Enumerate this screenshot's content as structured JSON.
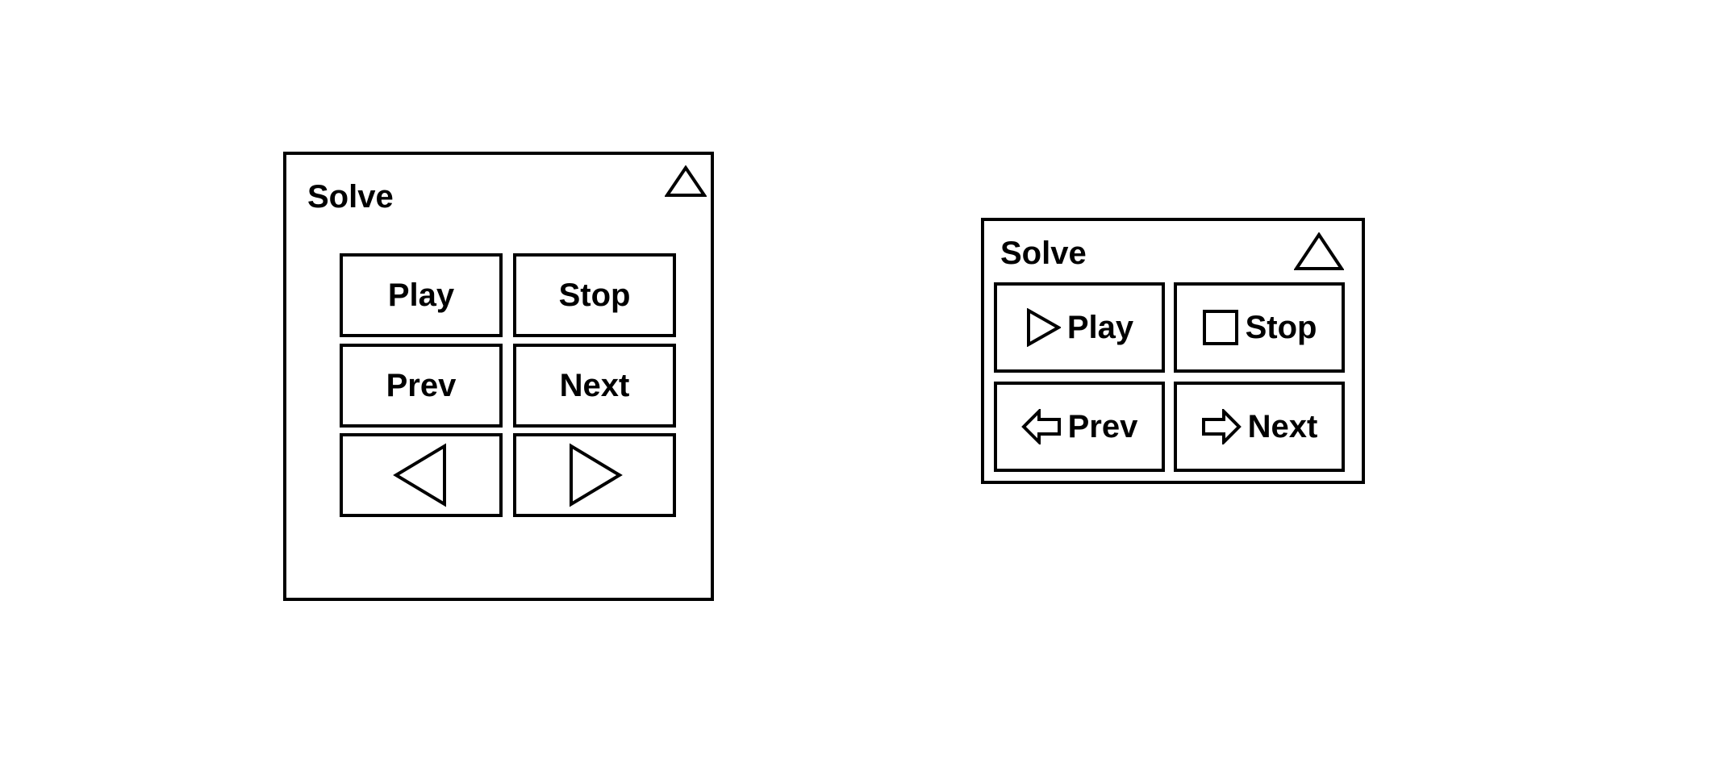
{
  "panels": [
    {
      "title": "Solve",
      "buttons": {
        "play": "Play",
        "stop": "Stop",
        "prev": "Prev",
        "next": "Next"
      },
      "icons": [
        "triangle-up-icon",
        "triangle-left-icon",
        "triangle-right-icon"
      ]
    },
    {
      "title": "Solve",
      "buttons": {
        "play": "Play",
        "stop": "Stop",
        "prev": "Prev",
        "next": "Next"
      },
      "icons": [
        "triangle-up-icon",
        "play-icon",
        "stop-icon",
        "arrow-left-icon",
        "arrow-right-icon"
      ]
    }
  ]
}
